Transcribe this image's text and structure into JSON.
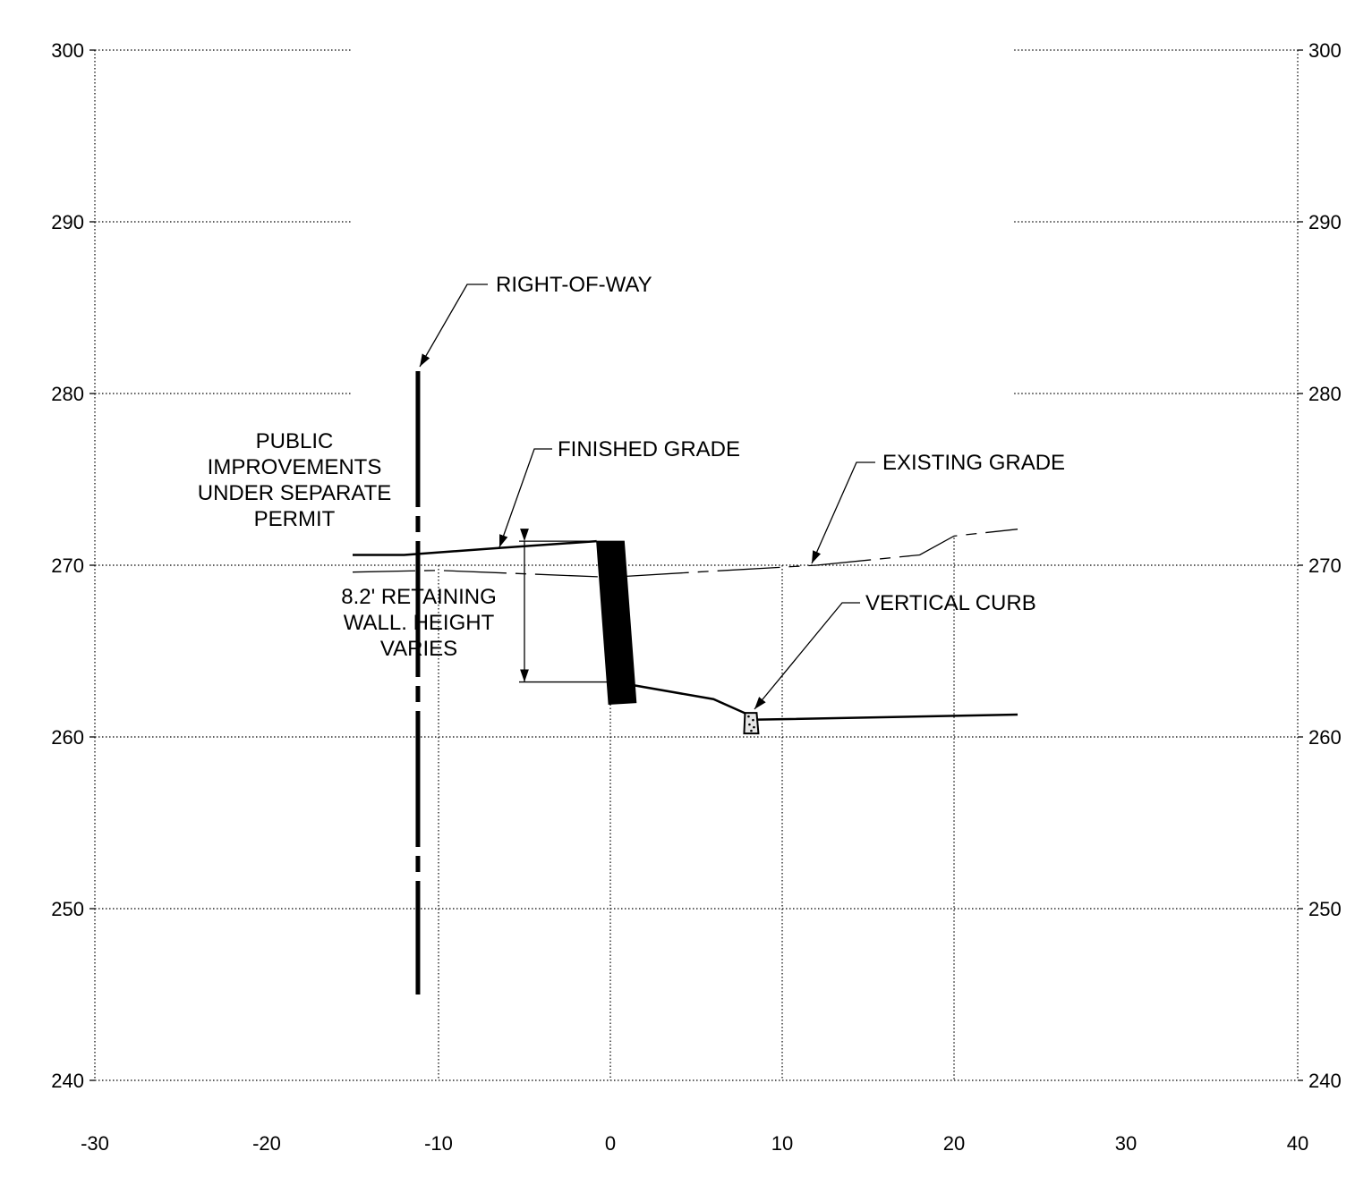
{
  "chart_data": {
    "type": "line",
    "x_ticks": [
      "-30",
      "-20",
      "-10",
      "0",
      "10",
      "20",
      "30",
      "40"
    ],
    "y_ticks": [
      "240",
      "250",
      "260",
      "270",
      "280",
      "290",
      "300"
    ],
    "xlim": [
      -30,
      40
    ],
    "ylim": [
      240,
      300
    ],
    "grid": true,
    "series": [
      {
        "name": "FINISHED GRADE",
        "x": [
          -15,
          -12,
          -6.5,
          -0.8
        ],
        "y": [
          270.6,
          270.6,
          271.0,
          271.4
        ]
      },
      {
        "name": "EXISTING GRADE",
        "x": [
          -15,
          -10,
          0,
          5,
          12,
          18,
          20,
          23.7
        ],
        "y": [
          269.6,
          269.7,
          269.3,
          269.6,
          270.0,
          270.6,
          271.7,
          272.1
        ]
      },
      {
        "x": [
          1.4,
          6,
          7.8,
          8.2,
          23.7
        ],
        "y": [
          263.0,
          262.2,
          261.4,
          261.0,
          261.3
        ]
      }
    ],
    "wall": {
      "top": [
        [
          -0.8,
          271.4
        ],
        [
          0.8,
          271.4
        ]
      ],
      "bottom": [
        [
          1.5,
          262.0
        ],
        [
          -0.1,
          261.9
        ]
      ]
    },
    "curb": {
      "x": 8.2,
      "top": 261.4,
      "bottom": 260.2
    },
    "row_line": {
      "x": -11.2,
      "top": 281.3,
      "bottom": 245.0
    },
    "dimension": {
      "x": -5,
      "top": 271.4,
      "bottom": 263.2
    },
    "annotations": [
      {
        "key": "row",
        "text": "RIGHT-OF-WAY"
      },
      {
        "key": "finished",
        "text": "FINISHED GRADE"
      },
      {
        "key": "existing",
        "text": "EXISTING GRADE"
      },
      {
        "key": "curb",
        "text": "VERTICAL CURB"
      },
      {
        "key": "public",
        "lines": [
          "PUBLIC",
          "IMPROVEMENTS",
          "UNDER SEPARATE",
          "PERMIT"
        ]
      },
      {
        "key": "wall",
        "lines": [
          "8.2' RETAINING",
          "WALL. HEIGHT",
          "VARIES"
        ]
      }
    ]
  }
}
